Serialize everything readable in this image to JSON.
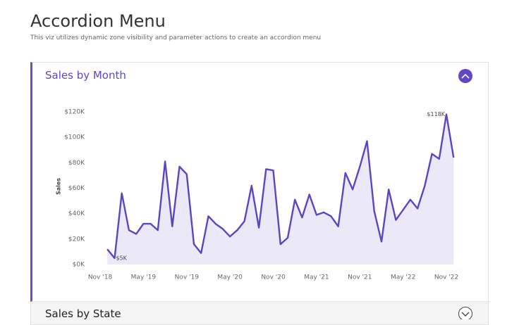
{
  "header": {
    "title": "Accordion Menu",
    "subtitle": "This viz utilizes dynamic zone visibility and parameter actions to create an accordion menu"
  },
  "sections": [
    {
      "title": "Sales by Month"
    },
    {
      "title": "Sales by State"
    }
  ],
  "chart_data": {
    "type": "line",
    "y_label": "Sales",
    "categories": [
      "Nov '18",
      null,
      null,
      null,
      null,
      null,
      "May '19",
      null,
      null,
      null,
      null,
      null,
      "Nov '19",
      null,
      null,
      null,
      null,
      null,
      "May '20",
      null,
      null,
      null,
      null,
      null,
      "Nov '20",
      null,
      null,
      null,
      null,
      null,
      "May '21",
      null,
      null,
      null,
      null,
      null,
      "Nov '21",
      null,
      null,
      null,
      null,
      null,
      "May '22",
      null,
      null,
      null,
      null,
      null,
      "Nov '22",
      null
    ],
    "values": [
      null,
      12000,
      5000,
      56000,
      27000,
      24000,
      32000,
      32000,
      27000,
      81000,
      30000,
      77000,
      71000,
      16000,
      9000,
      38000,
      32000,
      28000,
      22000,
      27000,
      34000,
      62000,
      29000,
      75000,
      74000,
      16000,
      21000,
      51000,
      37000,
      55000,
      39000,
      41000,
      38000,
      30000,
      72000,
      59000,
      77000,
      97000,
      42000,
      18000,
      59000,
      35000,
      43000,
      51000,
      44000,
      62000,
      87000,
      83000,
      118000,
      84000
    ],
    "value_labels": [
      null,
      null,
      "$5K",
      null,
      null,
      null,
      null,
      null,
      null,
      null,
      null,
      null,
      null,
      null,
      null,
      null,
      null,
      null,
      null,
      null,
      null,
      null,
      null,
      null,
      null,
      null,
      null,
      null,
      null,
      null,
      null,
      null,
      null,
      null,
      null,
      null,
      null,
      null,
      null,
      null,
      null,
      null,
      null,
      null,
      null,
      null,
      null,
      null,
      "$118K",
      null
    ],
    "color": "#5b45c2",
    "area_color": "#ebe8f7",
    "ylim": [
      0,
      120000
    ],
    "yticks": [
      {
        "value": 0,
        "label": "$0K"
      },
      {
        "value": 20000,
        "label": "$20K"
      },
      {
        "value": 40000,
        "label": "$40K"
      },
      {
        "value": 60000,
        "label": "$60K"
      },
      {
        "value": 80000,
        "label": "$80K"
      },
      {
        "value": 100000,
        "label": "$100K"
      },
      {
        "value": 120000,
        "label": "$120K"
      }
    ],
    "grid": false
  }
}
